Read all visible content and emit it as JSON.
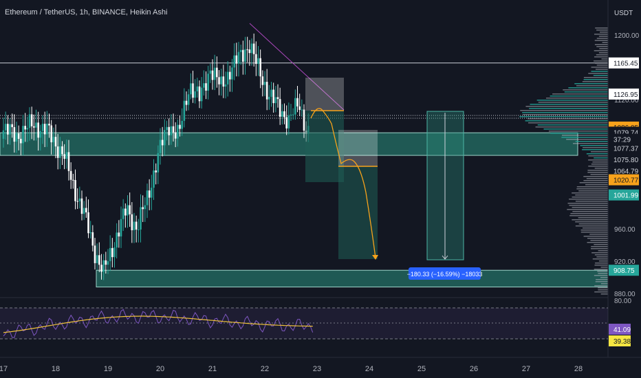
{
  "header": {
    "title": "Ethereum / TetherUS, 1h, BINANCE, Heikin Ashi"
  },
  "axis": {
    "currency": "USDT",
    "price_ticks": [
      "1200.00",
      "1120.00",
      "960.00",
      "920.00",
      "880.00"
    ],
    "date_ticks": [
      "17",
      "18",
      "19",
      "20",
      "21",
      "22",
      "23",
      "24",
      "25",
      "26",
      "27",
      "28"
    ]
  },
  "price_tags": [
    {
      "text": "1165.45",
      "price": 1165.45,
      "style": "white"
    },
    {
      "text": "1126.95",
      "price": 1126.95,
      "style": "white"
    },
    {
      "text": "1086.05",
      "price": 1086.05,
      "style": "orange"
    },
    {
      "text": "1079.74",
      "price": 1079.74,
      "style": "plain"
    },
    {
      "text": "37:29",
      "price": 1071,
      "style": "plain"
    },
    {
      "text": "1077.37",
      "price": 1060,
      "style": "plain"
    },
    {
      "text": "1075.80",
      "price": 1046,
      "style": "plain"
    },
    {
      "text": "1064.79",
      "price": 1032,
      "style": "plain"
    },
    {
      "text": "1020.77",
      "price": 1020.77,
      "style": "orange"
    },
    {
      "text": "1001.99",
      "price": 1001.99,
      "style": "teal"
    },
    {
      "text": "908.75",
      "price": 908.75,
      "style": "teal"
    }
  ],
  "measure_label": "−180.33 (−16.59%) −18033",
  "indicator": {
    "ticks": [
      "80.00"
    ],
    "tags": [
      {
        "text": "41.09",
        "value": 41.09,
        "style": "purple"
      },
      {
        "text": "39.38",
        "value": 39.38,
        "style": "yellow"
      }
    ]
  },
  "colors": {
    "background": "#131722",
    "bull": "#26a69a",
    "bear": "#ffffff",
    "zone": "#2a8f7e",
    "arrow": "#f7a21b",
    "trendline": "#ab47bc",
    "rsi": "#7e57c2",
    "rsi_ma": "#f0c23b",
    "label_blue": "#2962ff"
  },
  "chart_data": {
    "type": "candlestick",
    "title": "Ethereum / TetherUS, 1h, BINANCE, Heikin Ashi",
    "x_ticks": [
      "17",
      "18",
      "19",
      "20",
      "21",
      "22",
      "23",
      "24",
      "25",
      "26",
      "27",
      "28"
    ],
    "y_axis": {
      "unit": "USDT",
      "range": [
        870,
        1210
      ]
    },
    "price_path": [
      [
        17.0,
        1085
      ],
      [
        17.3,
        1075
      ],
      [
        17.6,
        1090
      ],
      [
        17.9,
        1080
      ],
      [
        18.2,
        1050
      ],
      [
        18.4,
        1010
      ],
      [
        18.6,
        975
      ],
      [
        18.8,
        930
      ],
      [
        18.95,
        905
      ],
      [
        19.2,
        950
      ],
      [
        19.4,
        985
      ],
      [
        19.6,
        960
      ],
      [
        19.8,
        1000
      ],
      [
        20.0,
        1050
      ],
      [
        20.2,
        1090
      ],
      [
        20.4,
        1075
      ],
      [
        20.6,
        1140
      ],
      [
        20.8,
        1120
      ],
      [
        21.0,
        1160
      ],
      [
        21.2,
        1135
      ],
      [
        21.4,
        1160
      ],
      [
        21.6,
        1175
      ],
      [
        21.75,
        1190
      ],
      [
        21.9,
        1160
      ],
      [
        22.1,
        1130
      ],
      [
        22.3,
        1110
      ],
      [
        22.5,
        1095
      ],
      [
        22.7,
        1115
      ],
      [
        22.85,
        1080
      ]
    ],
    "levels": [
      1165.45,
      1086.05,
      908.75
    ],
    "zones": [
      {
        "name": "support",
        "from": 1064.79,
        "to": 1077.37
      },
      {
        "name": "target",
        "from": 880.0,
        "to": 908.75
      }
    ],
    "measure": {
      "change": -180.33,
      "percent": -16.59,
      "ticks": -18033
    },
    "indicator": {
      "name": "RSI",
      "value": 41.09,
      "ma_value": 39.38,
      "top_tick": 80.0
    }
  }
}
